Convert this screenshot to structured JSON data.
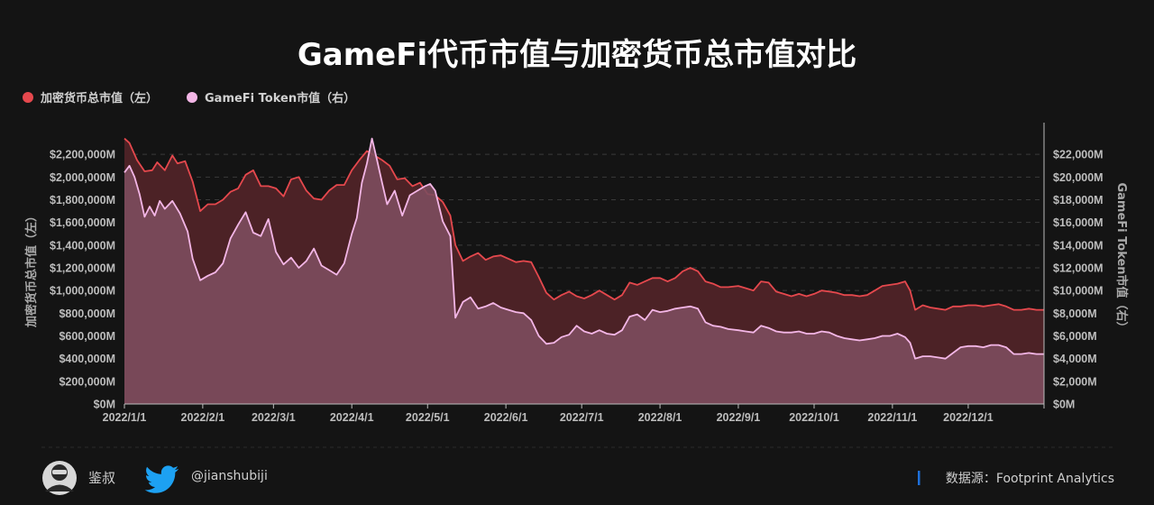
{
  "chart_data": {
    "type": "area",
    "title": "GameFi代币市值与加密货币总市值对比",
    "x_ticks": [
      "2022/1/1",
      "2022/2/1",
      "2022/3/1",
      "2022/4/1",
      "2022/5/1",
      "2022/6/1",
      "2022/7/1",
      "2022/8/1",
      "2022/9/1",
      "2022/10/1",
      "2022/11/1",
      "2022/12/1"
    ],
    "x_range": [
      "2022-01-01",
      "2022-12-31"
    ],
    "ylabel_left": "加密货币总市值（左）",
    "ylabel_right": "GameFi Token市值（右）",
    "ylim_left": [
      0,
      2400000
    ],
    "ylim_right": [
      0,
      24000
    ],
    "y_ticks_left": [
      "$0M",
      "$200,000M",
      "$400,000M",
      "$600,000M",
      "$800,000M",
      "$1,000,000M",
      "$1,200,000M",
      "$1,400,000M",
      "$1,600,000M",
      "$1,800,000M",
      "$2,000,000M",
      "$2,200,000M"
    ],
    "y_ticks_right": [
      "$0M",
      "$2,000M",
      "$4,000M",
      "$6,000M",
      "$8,000M",
      "$10,000M",
      "$12,000M",
      "$14,000M",
      "$16,000M",
      "$18,000M",
      "$20,000M",
      "$22,000M"
    ],
    "grid": "horizontal dashed",
    "legend_position": "top-left",
    "series": [
      {
        "name": "加密货币总市值（左）",
        "axis": "left",
        "color": "#e5484d",
        "units": "M USD",
        "points": [
          [
            "2022-01-01",
            2340000
          ],
          [
            "2022-01-03",
            2300000
          ],
          [
            "2022-01-06",
            2150000
          ],
          [
            "2022-01-09",
            2050000
          ],
          [
            "2022-01-12",
            2060000
          ],
          [
            "2022-01-14",
            2130000
          ],
          [
            "2022-01-17",
            2060000
          ],
          [
            "2022-01-20",
            2190000
          ],
          [
            "2022-01-22",
            2120000
          ],
          [
            "2022-01-25",
            2140000
          ],
          [
            "2022-01-28",
            1960000
          ],
          [
            "2022-01-31",
            1700000
          ],
          [
            "2022-02-03",
            1760000
          ],
          [
            "2022-02-06",
            1760000
          ],
          [
            "2022-02-09",
            1800000
          ],
          [
            "2022-02-12",
            1870000
          ],
          [
            "2022-02-15",
            1900000
          ],
          [
            "2022-02-18",
            2020000
          ],
          [
            "2022-02-21",
            2060000
          ],
          [
            "2022-02-24",
            1920000
          ],
          [
            "2022-02-27",
            1920000
          ],
          [
            "2022-03-02",
            1900000
          ],
          [
            "2022-03-05",
            1830000
          ],
          [
            "2022-03-08",
            1980000
          ],
          [
            "2022-03-11",
            2000000
          ],
          [
            "2022-03-14",
            1880000
          ],
          [
            "2022-03-17",
            1810000
          ],
          [
            "2022-03-20",
            1800000
          ],
          [
            "2022-03-23",
            1880000
          ],
          [
            "2022-03-26",
            1930000
          ],
          [
            "2022-03-29",
            1930000
          ],
          [
            "2022-04-01",
            2060000
          ],
          [
            "2022-04-04",
            2150000
          ],
          [
            "2022-04-07",
            2230000
          ],
          [
            "2022-04-10",
            2190000
          ],
          [
            "2022-04-13",
            2150000
          ],
          [
            "2022-04-16",
            2100000
          ],
          [
            "2022-04-19",
            1980000
          ],
          [
            "2022-04-22",
            1990000
          ],
          [
            "2022-04-25",
            1920000
          ],
          [
            "2022-04-28",
            1950000
          ],
          [
            "2022-05-01",
            1850000
          ],
          [
            "2022-05-04",
            1840000
          ],
          [
            "2022-05-07",
            1780000
          ],
          [
            "2022-05-10",
            1660000
          ],
          [
            "2022-05-12",
            1400000
          ],
          [
            "2022-05-15",
            1260000
          ],
          [
            "2022-05-18",
            1300000
          ],
          [
            "2022-05-21",
            1330000
          ],
          [
            "2022-05-24",
            1270000
          ],
          [
            "2022-05-27",
            1300000
          ],
          [
            "2022-05-30",
            1310000
          ],
          [
            "2022-06-02",
            1280000
          ],
          [
            "2022-06-05",
            1250000
          ],
          [
            "2022-06-08",
            1260000
          ],
          [
            "2022-06-11",
            1250000
          ],
          [
            "2022-06-14",
            1120000
          ],
          [
            "2022-06-17",
            980000
          ],
          [
            "2022-06-20",
            920000
          ],
          [
            "2022-06-23",
            960000
          ],
          [
            "2022-06-26",
            990000
          ],
          [
            "2022-06-29",
            950000
          ],
          [
            "2022-07-02",
            930000
          ],
          [
            "2022-07-05",
            960000
          ],
          [
            "2022-07-08",
            1000000
          ],
          [
            "2022-07-11",
            960000
          ],
          [
            "2022-07-14",
            920000
          ],
          [
            "2022-07-17",
            960000
          ],
          [
            "2022-07-20",
            1070000
          ],
          [
            "2022-07-23",
            1050000
          ],
          [
            "2022-07-26",
            1080000
          ],
          [
            "2022-07-29",
            1110000
          ],
          [
            "2022-08-01",
            1110000
          ],
          [
            "2022-08-04",
            1080000
          ],
          [
            "2022-08-07",
            1110000
          ],
          [
            "2022-08-10",
            1170000
          ],
          [
            "2022-08-13",
            1200000
          ],
          [
            "2022-08-16",
            1170000
          ],
          [
            "2022-08-19",
            1080000
          ],
          [
            "2022-08-22",
            1060000
          ],
          [
            "2022-08-25",
            1030000
          ],
          [
            "2022-08-28",
            1030000
          ],
          [
            "2022-09-01",
            1040000
          ],
          [
            "2022-09-04",
            1020000
          ],
          [
            "2022-09-07",
            1000000
          ],
          [
            "2022-09-10",
            1080000
          ],
          [
            "2022-09-13",
            1070000
          ],
          [
            "2022-09-16",
            990000
          ],
          [
            "2022-09-19",
            970000
          ],
          [
            "2022-09-22",
            950000
          ],
          [
            "2022-09-25",
            970000
          ],
          [
            "2022-09-28",
            950000
          ],
          [
            "2022-10-01",
            970000
          ],
          [
            "2022-10-04",
            1000000
          ],
          [
            "2022-10-07",
            990000
          ],
          [
            "2022-10-10",
            980000
          ],
          [
            "2022-10-13",
            960000
          ],
          [
            "2022-10-16",
            960000
          ],
          [
            "2022-10-19",
            950000
          ],
          [
            "2022-10-22",
            960000
          ],
          [
            "2022-10-25",
            1000000
          ],
          [
            "2022-10-28",
            1040000
          ],
          [
            "2022-10-31",
            1050000
          ],
          [
            "2022-11-03",
            1060000
          ],
          [
            "2022-11-06",
            1080000
          ],
          [
            "2022-11-08",
            1000000
          ],
          [
            "2022-11-10",
            830000
          ],
          [
            "2022-11-13",
            870000
          ],
          [
            "2022-11-16",
            850000
          ],
          [
            "2022-11-19",
            840000
          ],
          [
            "2022-11-22",
            830000
          ],
          [
            "2022-11-25",
            860000
          ],
          [
            "2022-11-28",
            860000
          ],
          [
            "2022-12-01",
            870000
          ],
          [
            "2022-12-04",
            870000
          ],
          [
            "2022-12-07",
            860000
          ],
          [
            "2022-12-10",
            870000
          ],
          [
            "2022-12-13",
            880000
          ],
          [
            "2022-12-16",
            860000
          ],
          [
            "2022-12-19",
            830000
          ],
          [
            "2022-12-22",
            830000
          ],
          [
            "2022-12-25",
            840000
          ],
          [
            "2022-12-28",
            830000
          ],
          [
            "2022-12-31",
            830000
          ]
        ]
      },
      {
        "name": "GameFi Token市值（右）",
        "axis": "right",
        "color": "#f3b6e6",
        "units": "M USD",
        "points": [
          [
            "2022-01-01",
            20400
          ],
          [
            "2022-01-03",
            21000
          ],
          [
            "2022-01-05",
            20000
          ],
          [
            "2022-01-07",
            18500
          ],
          [
            "2022-01-09",
            16500
          ],
          [
            "2022-01-11",
            17400
          ],
          [
            "2022-01-13",
            16600
          ],
          [
            "2022-01-15",
            17900
          ],
          [
            "2022-01-17",
            17200
          ],
          [
            "2022-01-20",
            17900
          ],
          [
            "2022-01-23",
            16800
          ],
          [
            "2022-01-26",
            15200
          ],
          [
            "2022-01-28",
            12800
          ],
          [
            "2022-01-31",
            10900
          ],
          [
            "2022-02-03",
            11300
          ],
          [
            "2022-02-06",
            11600
          ],
          [
            "2022-02-09",
            12400
          ],
          [
            "2022-02-12",
            14600
          ],
          [
            "2022-02-15",
            15800
          ],
          [
            "2022-02-18",
            16900
          ],
          [
            "2022-02-21",
            15100
          ],
          [
            "2022-02-24",
            14800
          ],
          [
            "2022-02-27",
            16300
          ],
          [
            "2022-03-02",
            13400
          ],
          [
            "2022-03-05",
            12300
          ],
          [
            "2022-03-08",
            12900
          ],
          [
            "2022-03-11",
            12000
          ],
          [
            "2022-03-14",
            12600
          ],
          [
            "2022-03-17",
            13700
          ],
          [
            "2022-03-20",
            12200
          ],
          [
            "2022-03-23",
            11800
          ],
          [
            "2022-03-26",
            11400
          ],
          [
            "2022-03-29",
            12400
          ],
          [
            "2022-04-01",
            15000
          ],
          [
            "2022-04-03",
            16400
          ],
          [
            "2022-04-05",
            19500
          ],
          [
            "2022-04-07",
            21200
          ],
          [
            "2022-04-09",
            23400
          ],
          [
            "2022-04-11",
            21500
          ],
          [
            "2022-04-13",
            19500
          ],
          [
            "2022-04-15",
            17600
          ],
          [
            "2022-04-18",
            18800
          ],
          [
            "2022-04-21",
            16600
          ],
          [
            "2022-04-24",
            18400
          ],
          [
            "2022-04-27",
            18800
          ],
          [
            "2022-04-30",
            19200
          ],
          [
            "2022-05-02",
            19400
          ],
          [
            "2022-05-04",
            18800
          ],
          [
            "2022-05-07",
            16100
          ],
          [
            "2022-05-10",
            14800
          ],
          [
            "2022-05-12",
            7600
          ],
          [
            "2022-05-15",
            9000
          ],
          [
            "2022-05-18",
            9400
          ],
          [
            "2022-05-21",
            8400
          ],
          [
            "2022-05-24",
            8600
          ],
          [
            "2022-05-27",
            8900
          ],
          [
            "2022-05-30",
            8500
          ],
          [
            "2022-06-02",
            8300
          ],
          [
            "2022-06-05",
            8100
          ],
          [
            "2022-06-08",
            8000
          ],
          [
            "2022-06-11",
            7400
          ],
          [
            "2022-06-14",
            6000
          ],
          [
            "2022-06-17",
            5300
          ],
          [
            "2022-06-20",
            5400
          ],
          [
            "2022-06-23",
            5900
          ],
          [
            "2022-06-26",
            6100
          ],
          [
            "2022-06-29",
            6900
          ],
          [
            "2022-07-02",
            6400
          ],
          [
            "2022-07-05",
            6200
          ],
          [
            "2022-07-08",
            6500
          ],
          [
            "2022-07-11",
            6200
          ],
          [
            "2022-07-14",
            6100
          ],
          [
            "2022-07-17",
            6500
          ],
          [
            "2022-07-20",
            7700
          ],
          [
            "2022-07-23",
            7900
          ],
          [
            "2022-07-26",
            7400
          ],
          [
            "2022-07-29",
            8300
          ],
          [
            "2022-08-01",
            8100
          ],
          [
            "2022-08-04",
            8200
          ],
          [
            "2022-08-07",
            8400
          ],
          [
            "2022-08-10",
            8500
          ],
          [
            "2022-08-13",
            8600
          ],
          [
            "2022-08-16",
            8400
          ],
          [
            "2022-08-19",
            7200
          ],
          [
            "2022-08-22",
            6900
          ],
          [
            "2022-08-25",
            6800
          ],
          [
            "2022-08-28",
            6600
          ],
          [
            "2022-09-01",
            6500
          ],
          [
            "2022-09-04",
            6400
          ],
          [
            "2022-09-07",
            6300
          ],
          [
            "2022-09-10",
            6900
          ],
          [
            "2022-09-13",
            6700
          ],
          [
            "2022-09-16",
            6400
          ],
          [
            "2022-09-19",
            6300
          ],
          [
            "2022-09-22",
            6300
          ],
          [
            "2022-09-25",
            6400
          ],
          [
            "2022-09-28",
            6200
          ],
          [
            "2022-10-01",
            6200
          ],
          [
            "2022-10-04",
            6400
          ],
          [
            "2022-10-07",
            6300
          ],
          [
            "2022-10-10",
            6000
          ],
          [
            "2022-10-13",
            5800
          ],
          [
            "2022-10-16",
            5700
          ],
          [
            "2022-10-19",
            5600
          ],
          [
            "2022-10-22",
            5700
          ],
          [
            "2022-10-25",
            5800
          ],
          [
            "2022-10-28",
            6000
          ],
          [
            "2022-10-31",
            6000
          ],
          [
            "2022-11-03",
            6200
          ],
          [
            "2022-11-06",
            5900
          ],
          [
            "2022-11-08",
            5400
          ],
          [
            "2022-11-10",
            4000
          ],
          [
            "2022-11-13",
            4200
          ],
          [
            "2022-11-16",
            4200
          ],
          [
            "2022-11-19",
            4100
          ],
          [
            "2022-11-22",
            4000
          ],
          [
            "2022-11-25",
            4500
          ],
          [
            "2022-11-28",
            5000
          ],
          [
            "2022-12-01",
            5100
          ],
          [
            "2022-12-04",
            5100
          ],
          [
            "2022-12-07",
            5000
          ],
          [
            "2022-12-10",
            5200
          ],
          [
            "2022-12-13",
            5200
          ],
          [
            "2022-12-16",
            5000
          ],
          [
            "2022-12-19",
            4400
          ],
          [
            "2022-12-22",
            4400
          ],
          [
            "2022-12-25",
            4500
          ],
          [
            "2022-12-28",
            4400
          ],
          [
            "2022-12-31",
            4400
          ]
        ]
      }
    ]
  },
  "footer": {
    "author_name": "鉴叔",
    "twitter_handle": "@jianshubiji",
    "source_label": "数据源：Footprint  Analytics",
    "accent_color": "#1e6fd9"
  }
}
